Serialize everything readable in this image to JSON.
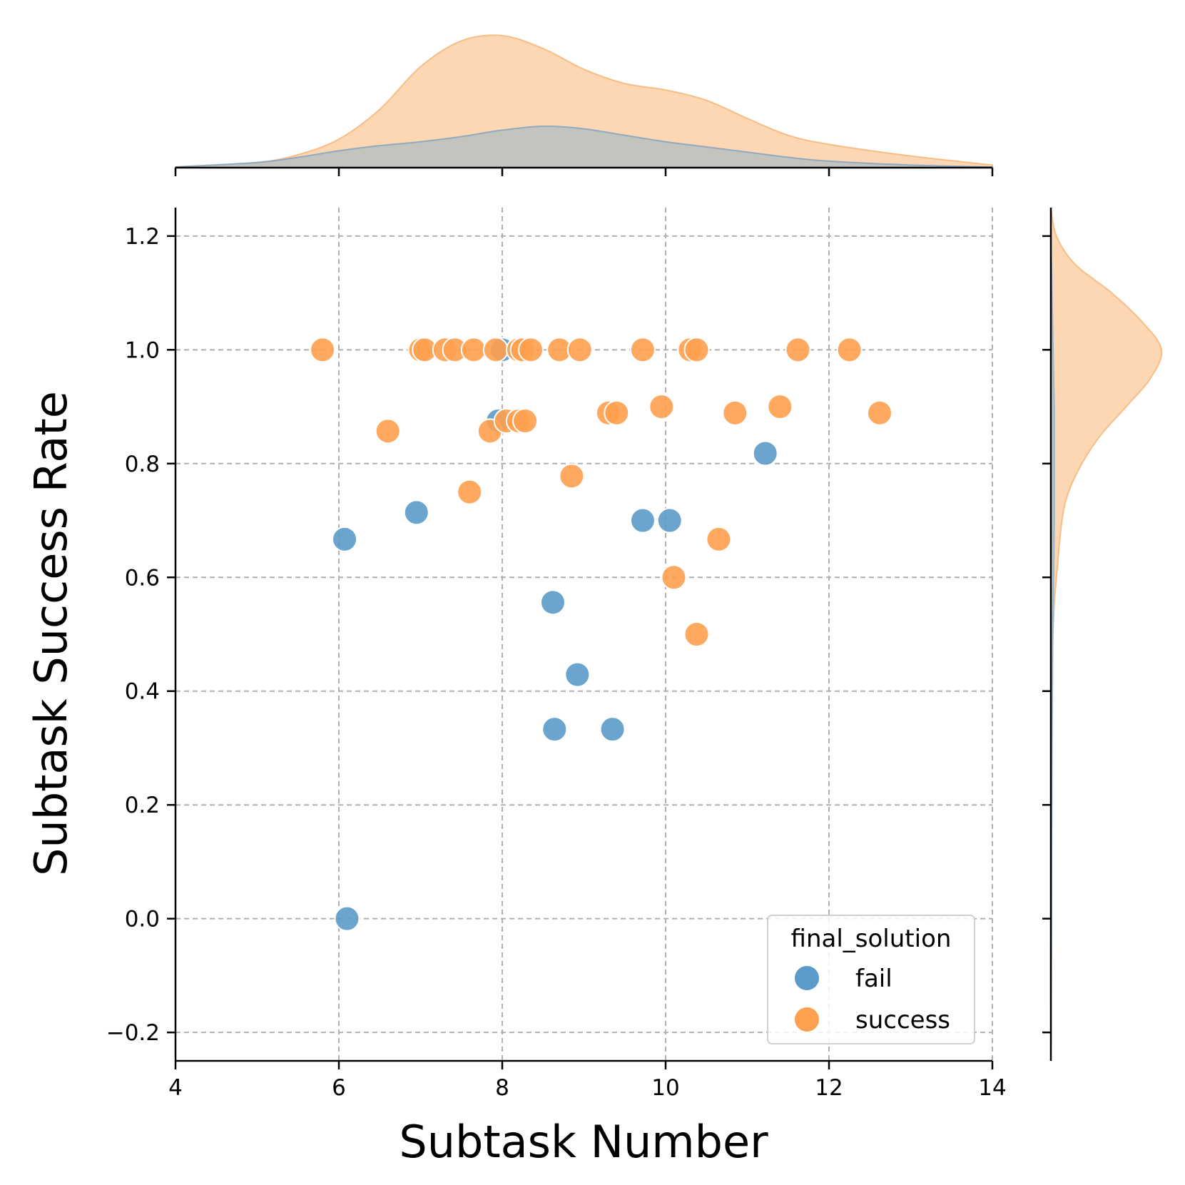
{
  "chart_data": {
    "type": "scatter",
    "title": "",
    "xlabel": "Subtask Number",
    "ylabel": "Subtask Success Rate",
    "xlim": [
      4,
      14
    ],
    "ylim": [
      -0.25,
      1.25
    ],
    "xticks": [
      4,
      6,
      8,
      10,
      12,
      14
    ],
    "yticks": [
      -0.2,
      0.0,
      0.2,
      0.4,
      0.6,
      0.8,
      1.0,
      1.2
    ],
    "xtick_labels": [
      "4",
      "6",
      "8",
      "10",
      "12",
      "14"
    ],
    "ytick_labels": [
      "−0.2",
      "0.0",
      "0.2",
      "0.4",
      "0.6",
      "0.8",
      "1.0",
      "1.2"
    ],
    "grid": true,
    "legend": {
      "title": "final_solution",
      "placement": "bottom-right",
      "entries": [
        "fail",
        "success"
      ]
    },
    "colors": {
      "fail": "#5b9bc9",
      "success": "#ffa04f",
      "fail_kde": "#9fbdd6",
      "success_kde": "#fdd7b3",
      "overlap": "#c4c4bf"
    },
    "series": [
      {
        "name": "fail",
        "points": [
          [
            6.1,
            0.0
          ],
          [
            6.07,
            0.667
          ],
          [
            6.95,
            0.714
          ],
          [
            8.0,
            1.0
          ],
          [
            7.95,
            0.875
          ],
          [
            8.62,
            0.556
          ],
          [
            8.92,
            0.429
          ],
          [
            8.64,
            0.333
          ],
          [
            9.35,
            0.333
          ],
          [
            9.72,
            0.7
          ],
          [
            10.05,
            0.7
          ],
          [
            11.22,
            0.818
          ]
        ]
      },
      {
        "name": "success",
        "points": [
          [
            5.8,
            1.0
          ],
          [
            7.0,
            1.0
          ],
          [
            7.05,
            1.0
          ],
          [
            7.3,
            1.0
          ],
          [
            7.42,
            1.0
          ],
          [
            7.65,
            1.0
          ],
          [
            7.92,
            1.0
          ],
          [
            8.2,
            1.0
          ],
          [
            8.25,
            1.0
          ],
          [
            8.35,
            1.0
          ],
          [
            8.7,
            1.0
          ],
          [
            8.95,
            1.0
          ],
          [
            9.72,
            1.0
          ],
          [
            10.3,
            1.0
          ],
          [
            10.38,
            1.0
          ],
          [
            11.62,
            1.0
          ],
          [
            12.25,
            1.0
          ],
          [
            6.6,
            0.857
          ],
          [
            7.85,
            0.857
          ],
          [
            8.05,
            0.875
          ],
          [
            8.2,
            0.875
          ],
          [
            8.28,
            0.875
          ],
          [
            9.3,
            0.889
          ],
          [
            9.4,
            0.889
          ],
          [
            9.95,
            0.9
          ],
          [
            10.85,
            0.889
          ],
          [
            11.4,
            0.9
          ],
          [
            12.62,
            0.889
          ],
          [
            7.6,
            0.75
          ],
          [
            8.85,
            0.778
          ],
          [
            10.65,
            0.667
          ],
          [
            10.1,
            0.6
          ],
          [
            10.38,
            0.5
          ]
        ]
      }
    ],
    "marginal_x": {
      "grid_x": [
        4,
        5,
        5.5,
        6,
        6.5,
        7,
        7.5,
        8,
        8.5,
        9,
        9.5,
        10,
        10.5,
        11,
        11.5,
        12,
        13,
        14
      ],
      "fail_density": [
        0.005,
        0.04,
        0.08,
        0.13,
        0.17,
        0.2,
        0.24,
        0.29,
        0.32,
        0.3,
        0.25,
        0.2,
        0.16,
        0.12,
        0.08,
        0.05,
        0.02,
        0.005
      ],
      "success_density": [
        0.005,
        0.04,
        0.1,
        0.22,
        0.45,
        0.78,
        0.98,
        1.02,
        0.92,
        0.76,
        0.65,
        0.6,
        0.52,
        0.38,
        0.25,
        0.18,
        0.09,
        0.02
      ]
    },
    "marginal_y": {
      "grid_y": [
        -0.25,
        0.0,
        0.3,
        0.45,
        0.55,
        0.6,
        0.7,
        0.75,
        0.8,
        0.85,
        0.9,
        0.95,
        1.0,
        1.05,
        1.1,
        1.15,
        1.2,
        1.25
      ],
      "fail_density": [
        0.0,
        0.005,
        0.01,
        0.015,
        0.02,
        0.025,
        0.03,
        0.03,
        0.03,
        0.03,
        0.03,
        0.025,
        0.02,
        0.015,
        0.01,
        0.005,
        0.0,
        0.0
      ],
      "success_density": [
        0.0,
        0.0,
        0.002,
        0.01,
        0.03,
        0.05,
        0.1,
        0.16,
        0.28,
        0.45,
        0.68,
        0.9,
        1.0,
        0.82,
        0.55,
        0.22,
        0.05,
        0.0
      ]
    }
  }
}
